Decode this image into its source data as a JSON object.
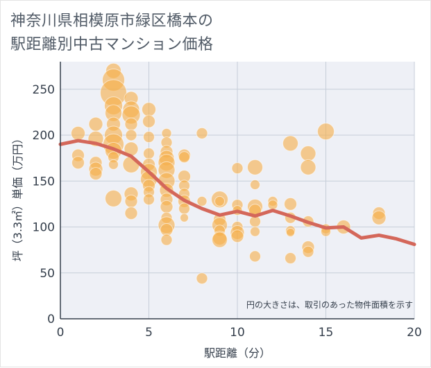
{
  "title_lines": [
    "神奈川県相模原市緑区橋本の",
    "駅距離別中古マンション価格"
  ],
  "chart_data": {
    "type": "scatter",
    "xlabel": "駅距離（分）",
    "ylabel": "坪（3.3㎡）単価（万円）",
    "note": "円の大きさは、取引のあった物件面積を示す",
    "xlim": [
      0,
      20
    ],
    "ylim": [
      0,
      280
    ],
    "x_ticks": [
      0,
      5,
      10,
      15,
      20
    ],
    "y_ticks": [
      0,
      50,
      100,
      150,
      200,
      250
    ],
    "grid": true,
    "colors": {
      "bubble": "#f5b04c",
      "trend": "#d4675a",
      "grid": "#c6cdd8",
      "plot_bg": "#eef0f6"
    },
    "bubbles": [
      {
        "x": 1,
        "y": 202,
        "s": 10
      },
      {
        "x": 1,
        "y": 178,
        "s": 9
      },
      {
        "x": 1,
        "y": 170,
        "s": 9
      },
      {
        "x": 2,
        "y": 212,
        "s": 10
      },
      {
        "x": 2,
        "y": 196,
        "s": 11
      },
      {
        "x": 2,
        "y": 170,
        "s": 9
      },
      {
        "x": 2,
        "y": 163,
        "s": 10
      },
      {
        "x": 2,
        "y": 158,
        "s": 9
      },
      {
        "x": 3,
        "y": 270,
        "s": 11
      },
      {
        "x": 3,
        "y": 260,
        "s": 16
      },
      {
        "x": 3,
        "y": 246,
        "s": 19
      },
      {
        "x": 3,
        "y": 232,
        "s": 13
      },
      {
        "x": 3,
        "y": 224,
        "s": 12
      },
      {
        "x": 3,
        "y": 212,
        "s": 10
      },
      {
        "x": 3,
        "y": 200,
        "s": 13
      },
      {
        "x": 3,
        "y": 190,
        "s": 15
      },
      {
        "x": 3,
        "y": 183,
        "s": 12
      },
      {
        "x": 3,
        "y": 176,
        "s": 8
      },
      {
        "x": 3,
        "y": 168,
        "s": 7
      },
      {
        "x": 3,
        "y": 131,
        "s": 12
      },
      {
        "x": 4,
        "y": 240,
        "s": 10
      },
      {
        "x": 4,
        "y": 228,
        "s": 12
      },
      {
        "x": 4,
        "y": 222,
        "s": 13
      },
      {
        "x": 4,
        "y": 212,
        "s": 9
      },
      {
        "x": 4,
        "y": 200,
        "s": 8
      },
      {
        "x": 4,
        "y": 185,
        "s": 10
      },
      {
        "x": 4,
        "y": 168,
        "s": 12
      },
      {
        "x": 4,
        "y": 136,
        "s": 10
      },
      {
        "x": 4,
        "y": 128,
        "s": 9
      },
      {
        "x": 4,
        "y": 115,
        "s": 9
      },
      {
        "x": 5,
        "y": 228,
        "s": 10
      },
      {
        "x": 5,
        "y": 215,
        "s": 9
      },
      {
        "x": 5,
        "y": 198,
        "s": 8
      },
      {
        "x": 5,
        "y": 180,
        "s": 8
      },
      {
        "x": 5,
        "y": 168,
        "s": 9
      },
      {
        "x": 5,
        "y": 160,
        "s": 12
      },
      {
        "x": 5,
        "y": 152,
        "s": 12
      },
      {
        "x": 5,
        "y": 145,
        "s": 9
      },
      {
        "x": 5,
        "y": 138,
        "s": 8
      },
      {
        "x": 5,
        "y": 130,
        "s": 8
      },
      {
        "x": 6,
        "y": 202,
        "s": 7
      },
      {
        "x": 6,
        "y": 192,
        "s": 8
      },
      {
        "x": 6,
        "y": 182,
        "s": 9
      },
      {
        "x": 6,
        "y": 175,
        "s": 11
      },
      {
        "x": 6,
        "y": 170,
        "s": 12
      },
      {
        "x": 6,
        "y": 162,
        "s": 12
      },
      {
        "x": 6,
        "y": 150,
        "s": 12
      },
      {
        "x": 6,
        "y": 140,
        "s": 10
      },
      {
        "x": 6,
        "y": 130,
        "s": 9
      },
      {
        "x": 6,
        "y": 122,
        "s": 9
      },
      {
        "x": 6,
        "y": 110,
        "s": 8
      },
      {
        "x": 6,
        "y": 102,
        "s": 12
      },
      {
        "x": 6,
        "y": 97,
        "s": 9
      },
      {
        "x": 6,
        "y": 86,
        "s": 8
      },
      {
        "x": 7,
        "y": 178,
        "s": 9
      },
      {
        "x": 7,
        "y": 176,
        "s": 8
      },
      {
        "x": 7,
        "y": 155,
        "s": 9
      },
      {
        "x": 7,
        "y": 145,
        "s": 8
      },
      {
        "x": 7,
        "y": 136,
        "s": 8
      },
      {
        "x": 7,
        "y": 128,
        "s": 9
      },
      {
        "x": 7,
        "y": 120,
        "s": 8
      },
      {
        "x": 7,
        "y": 110,
        "s": 6
      },
      {
        "x": 8,
        "y": 202,
        "s": 8
      },
      {
        "x": 8,
        "y": 128,
        "s": 7
      },
      {
        "x": 8,
        "y": 44,
        "s": 8
      },
      {
        "x": 9,
        "y": 130,
        "s": 12
      },
      {
        "x": 9,
        "y": 128,
        "s": 7
      },
      {
        "x": 9,
        "y": 108,
        "s": 9
      },
      {
        "x": 9,
        "y": 102,
        "s": 11
      },
      {
        "x": 9,
        "y": 96,
        "s": 8
      },
      {
        "x": 9,
        "y": 88,
        "s": 10
      },
      {
        "x": 9,
        "y": 86,
        "s": 11
      },
      {
        "x": 10,
        "y": 164,
        "s": 8
      },
      {
        "x": 10,
        "y": 124,
        "s": 8
      },
      {
        "x": 10,
        "y": 118,
        "s": 7
      },
      {
        "x": 10,
        "y": 100,
        "s": 8
      },
      {
        "x": 10,
        "y": 94,
        "s": 10
      },
      {
        "x": 10,
        "y": 90,
        "s": 9
      },
      {
        "x": 11,
        "y": 165,
        "s": 11
      },
      {
        "x": 11,
        "y": 146,
        "s": 7
      },
      {
        "x": 11,
        "y": 122,
        "s": 11
      },
      {
        "x": 11,
        "y": 118,
        "s": 9
      },
      {
        "x": 11,
        "y": 106,
        "s": 8
      },
      {
        "x": 11,
        "y": 95,
        "s": 7
      },
      {
        "x": 11,
        "y": 68,
        "s": 8
      },
      {
        "x": 12,
        "y": 128,
        "s": 7
      },
      {
        "x": 12,
        "y": 124,
        "s": 7
      },
      {
        "x": 13,
        "y": 191,
        "s": 11
      },
      {
        "x": 13,
        "y": 125,
        "s": 9
      },
      {
        "x": 13,
        "y": 110,
        "s": 8
      },
      {
        "x": 13,
        "y": 96,
        "s": 7
      },
      {
        "x": 13,
        "y": 94,
        "s": 6
      },
      {
        "x": 13,
        "y": 66,
        "s": 8
      },
      {
        "x": 14,
        "y": 180,
        "s": 11
      },
      {
        "x": 14,
        "y": 165,
        "s": 11
      },
      {
        "x": 14,
        "y": 106,
        "s": 8
      },
      {
        "x": 14,
        "y": 78,
        "s": 9
      },
      {
        "x": 14,
        "y": 73,
        "s": 8
      },
      {
        "x": 15,
        "y": 204,
        "s": 12
      },
      {
        "x": 15,
        "y": 98,
        "s": 7
      },
      {
        "x": 15,
        "y": 95,
        "s": 7
      },
      {
        "x": 16,
        "y": 100,
        "s": 10
      },
      {
        "x": 18,
        "y": 115,
        "s": 9
      },
      {
        "x": 18,
        "y": 110,
        "s": 10
      }
    ],
    "trend": {
      "x": [
        0,
        1,
        2,
        3,
        4,
        5,
        6,
        7,
        8,
        9,
        10,
        11,
        12,
        13,
        14,
        15,
        16,
        17,
        18,
        19,
        20
      ],
      "y": [
        190,
        194,
        191,
        185,
        177,
        160,
        142,
        129,
        120,
        113,
        117,
        112,
        118,
        112,
        105,
        99,
        100,
        88,
        91,
        87,
        81
      ]
    }
  }
}
